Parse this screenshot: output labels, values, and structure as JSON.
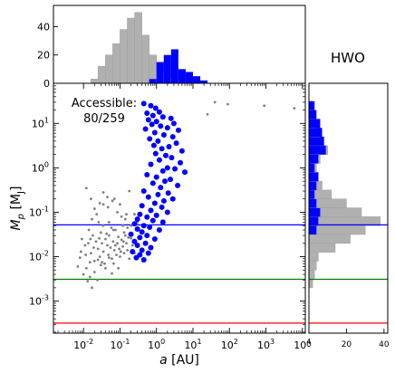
{
  "chart_data": {
    "type": "scatter",
    "title": "",
    "panel_label": "HWO",
    "annotation": {
      "line1": "Accessible:",
      "line2": "80/259"
    },
    "xlabel": "a [AU]",
    "ylabel": "Mp [MJ]",
    "xscale": "log",
    "yscale": "log",
    "xlim": [
      0.0015,
      12000
    ],
    "ylim": [
      0.00019,
      80
    ],
    "x_ticks": [
      "10-2",
      "10-1",
      "100",
      "101",
      "102",
      "103",
      "104"
    ],
    "y_ticks": [
      "10-3",
      "10-2",
      "10-1",
      "100",
      "101"
    ],
    "hlines": [
      {
        "y": 0.052,
        "color": "#0000ff"
      },
      {
        "y": 0.0031,
        "color": "#008000"
      },
      {
        "y": 0.00032,
        "color": "#ff0000"
      }
    ],
    "colors": {
      "accessible": "#0000ff",
      "inaccessible": "#7f7f7f",
      "hist_gray": "#b0b0b0"
    },
    "series": [
      {
        "name": "accessible",
        "points": [
          [
            0.45,
            28
          ],
          [
            0.7,
            25
          ],
          [
            0.95,
            22
          ],
          [
            1.2,
            18
          ],
          [
            0.55,
            17
          ],
          [
            0.8,
            15
          ],
          [
            1.5,
            14
          ],
          [
            2.5,
            13
          ],
          [
            0.6,
            12
          ],
          [
            1.0,
            11
          ],
          [
            3.0,
            10
          ],
          [
            0.75,
            9.5
          ],
          [
            1.3,
            8.7
          ],
          [
            2.0,
            8
          ],
          [
            0.5,
            7.5
          ],
          [
            4.0,
            7
          ],
          [
            0.9,
            6.2
          ],
          [
            1.6,
            5.5
          ],
          [
            2.8,
            5
          ],
          [
            0.65,
            4.5
          ],
          [
            1.1,
            4
          ],
          [
            3.5,
            3.6
          ],
          [
            0.85,
            3.2
          ],
          [
            2.2,
            3
          ],
          [
            1.4,
            2.7
          ],
          [
            5.0,
            2.4
          ],
          [
            0.95,
            2.1
          ],
          [
            1.8,
            1.9
          ],
          [
            2.6,
            1.7
          ],
          [
            1.2,
            1.5
          ],
          [
            4.5,
            1.3
          ],
          [
            0.7,
            1.2
          ],
          [
            2.0,
            1.0
          ],
          [
            3.2,
            0.95
          ],
          [
            1.5,
            0.85
          ],
          [
            6.0,
            0.8
          ],
          [
            0.55,
            0.7
          ],
          [
            1.0,
            0.62
          ],
          [
            2.4,
            0.55
          ],
          [
            1.7,
            0.5
          ],
          [
            0.8,
            0.45
          ],
          [
            3.8,
            0.4
          ],
          [
            1.3,
            0.36
          ],
          [
            0.45,
            0.3
          ],
          [
            2.1,
            0.27
          ],
          [
            1.1,
            0.25
          ],
          [
            0.6,
            0.22
          ],
          [
            2.8,
            0.2
          ],
          [
            1.6,
            0.18
          ],
          [
            0.9,
            0.16
          ],
          [
            0.4,
            0.14
          ],
          [
            1.4,
            0.13
          ],
          [
            0.7,
            0.11
          ],
          [
            2.0,
            0.1
          ],
          [
            0.35,
            0.09
          ],
          [
            1.0,
            0.085
          ],
          [
            0.55,
            0.078
          ],
          [
            0.3,
            0.07
          ],
          [
            0.8,
            0.065
          ],
          [
            1.5,
            0.06
          ],
          [
            0.25,
            0.055
          ],
          [
            0.45,
            0.05
          ],
          [
            0.65,
            0.046
          ],
          [
            0.3,
            0.042
          ],
          [
            1.2,
            0.04
          ],
          [
            0.4,
            0.036
          ],
          [
            0.2,
            0.032
          ],
          [
            0.55,
            0.03
          ],
          [
            0.35,
            0.027
          ],
          [
            0.9,
            0.025
          ],
          [
            0.25,
            0.022
          ],
          [
            0.5,
            0.02
          ],
          [
            0.3,
            0.018
          ],
          [
            0.7,
            0.016
          ],
          [
            0.4,
            0.014
          ],
          [
            0.22,
            0.013
          ],
          [
            0.6,
            0.012
          ],
          [
            0.35,
            0.011
          ],
          [
            0.28,
            0.0095
          ],
          [
            0.45,
            0.0085
          ]
        ]
      },
      {
        "name": "inaccessible",
        "points": [
          [
            40,
            30
          ],
          [
            90,
            27
          ],
          [
            900,
            25
          ],
          [
            6000,
            22
          ],
          [
            25,
            16
          ],
          [
            0.012,
            0.35
          ],
          [
            0.02,
            0.12
          ],
          [
            0.035,
            0.28
          ],
          [
            0.05,
            0.06
          ],
          [
            0.07,
            0.2
          ],
          [
            0.1,
            0.15
          ],
          [
            0.12,
            0.05
          ],
          [
            0.15,
            0.09
          ],
          [
            0.18,
            0.3
          ],
          [
            0.009,
            0.025
          ],
          [
            0.011,
            0.018
          ],
          [
            0.014,
            0.04
          ],
          [
            0.016,
            0.012
          ],
          [
            0.018,
            0.03
          ],
          [
            0.02,
            0.008
          ],
          [
            0.022,
            0.022
          ],
          [
            0.025,
            0.015
          ],
          [
            0.028,
            0.01
          ],
          [
            0.03,
            0.035
          ],
          [
            0.032,
            0.02
          ],
          [
            0.035,
            0.013
          ],
          [
            0.038,
            0.007
          ],
          [
            0.04,
            0.025
          ],
          [
            0.045,
            0.018
          ],
          [
            0.048,
            0.011
          ],
          [
            0.05,
            0.03
          ],
          [
            0.055,
            0.016
          ],
          [
            0.06,
            0.009
          ],
          [
            0.065,
            0.022
          ],
          [
            0.07,
            0.014
          ],
          [
            0.075,
            0.04
          ],
          [
            0.08,
            0.011
          ],
          [
            0.085,
            0.02
          ],
          [
            0.09,
            0.028
          ],
          [
            0.095,
            0.015
          ],
          [
            0.1,
            0.01
          ],
          [
            0.11,
            0.024
          ],
          [
            0.12,
            0.017
          ],
          [
            0.13,
            0.012
          ],
          [
            0.14,
            0.03
          ],
          [
            0.15,
            0.02
          ],
          [
            0.16,
            0.014
          ],
          [
            0.18,
            0.009
          ],
          [
            0.2,
            0.026
          ],
          [
            0.22,
            0.018
          ],
          [
            0.25,
            0.012
          ],
          [
            0.007,
            0.006
          ],
          [
            0.01,
            0.004
          ],
          [
            0.013,
            0.0028
          ],
          [
            0.015,
            0.0035
          ],
          [
            0.017,
            0.002
          ],
          [
            0.02,
            0.0045
          ],
          [
            0.024,
            0.003
          ],
          [
            0.012,
            0.0055
          ],
          [
            0.03,
            0.0065
          ],
          [
            0.015,
            0.0075
          ],
          [
            0.008,
            0.0095
          ],
          [
            0.025,
            0.0085
          ],
          [
            0.04,
            0.0055
          ],
          [
            0.06,
            0.0042
          ],
          [
            0.019,
            0.016
          ],
          [
            0.027,
            0.026
          ],
          [
            0.043,
            0.033
          ],
          [
            0.058,
            0.045
          ],
          [
            0.034,
            0.05
          ],
          [
            0.026,
            0.06
          ],
          [
            0.017,
            0.07
          ],
          [
            0.11,
            0.08
          ],
          [
            0.14,
            0.07
          ],
          [
            0.085,
            0.1
          ],
          [
            0.023,
            0.09
          ],
          [
            0.047,
            0.13
          ],
          [
            0.066,
            0.04
          ],
          [
            0.2,
            0.05
          ],
          [
            0.3,
            0.06
          ],
          [
            0.16,
            0.045
          ],
          [
            0.13,
            0.035
          ],
          [
            0.032,
            0.0075
          ],
          [
            0.05,
            0.0095
          ],
          [
            0.067,
            0.007
          ],
          [
            0.09,
            0.0055
          ],
          [
            0.0085,
            0.013
          ],
          [
            0.0115,
            0.011
          ],
          [
            0.0135,
            0.02
          ],
          [
            0.0155,
            0.025
          ],
          [
            0.075,
            0.018
          ],
          [
            0.105,
            0.013
          ],
          [
            0.125,
            0.022
          ],
          [
            0.17,
            0.027
          ],
          [
            0.035,
            0.15
          ],
          [
            0.062,
            0.18
          ],
          [
            0.045,
            0.22
          ],
          [
            0.028,
            0.16
          ],
          [
            0.016,
            0.2
          ],
          [
            0.25,
            0.09
          ]
        ]
      }
    ],
    "hist_top": {
      "bin_edges": [
        -2.4,
        -2.2,
        -2.0,
        -1.8,
        -1.6,
        -1.4,
        -1.2,
        -1.0,
        -0.8,
        -0.6,
        -0.4,
        -0.2,
        0.0,
        0.2,
        0.4,
        0.6,
        0.8,
        1.0,
        1.2,
        1.4
      ],
      "gray": [
        0,
        0,
        0,
        3,
        12,
        20,
        28,
        38,
        46,
        50,
        34,
        20,
        14,
        8,
        4,
        2,
        1,
        1,
        0
      ],
      "blue": [
        0,
        0,
        0,
        0,
        0,
        0,
        0,
        0,
        0,
        0,
        0,
        3,
        15,
        20,
        24,
        10,
        8,
        5,
        2
      ],
      "ylim": [
        0,
        55
      ],
      "y_ticks": [
        "0",
        "20",
        "40"
      ]
    },
    "hist_right": {
      "bin_edges": [
        -3.3,
        -3.1,
        -2.9,
        -2.7,
        -2.5,
        -2.3,
        -2.1,
        -1.9,
        -1.7,
        -1.5,
        -1.3,
        -1.1,
        -0.9,
        -0.7,
        -0.5,
        -0.3,
        -0.1,
        0.1,
        0.3,
        0.5,
        0.7,
        0.9,
        1.1,
        1.3,
        1.5
      ],
      "gray": [
        0,
        0,
        0,
        2,
        3,
        4,
        5,
        14,
        22,
        30,
        38,
        28,
        20,
        12,
        7,
        5,
        4,
        6,
        10,
        8,
        6,
        4,
        3,
        2
      ],
      "blue": [
        0,
        0,
        0,
        0,
        0,
        0,
        0,
        0,
        0,
        4,
        5,
        6,
        4,
        3,
        4,
        5,
        3,
        5,
        9,
        8,
        7,
        6,
        4,
        3
      ],
      "xlim": [
        0,
        42
      ],
      "x_ticks": [
        "0",
        "20",
        "40"
      ]
    }
  }
}
